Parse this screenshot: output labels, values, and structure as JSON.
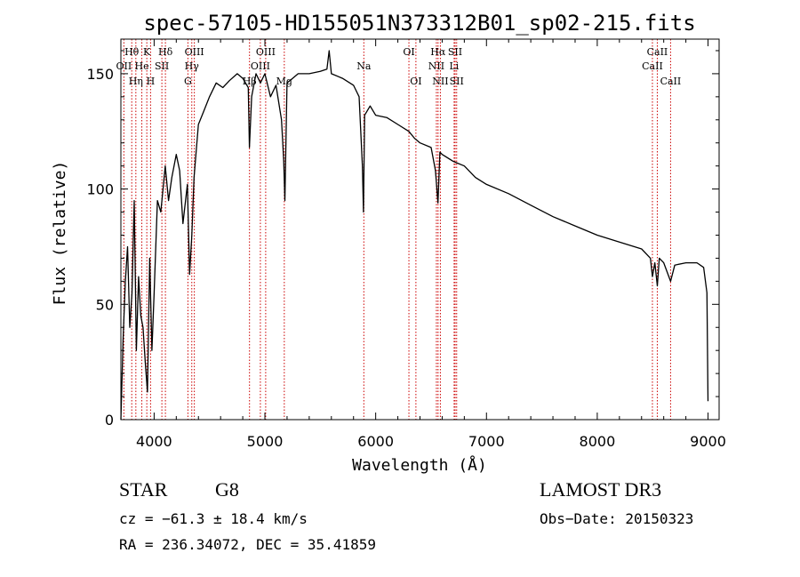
{
  "chart_data": {
    "type": "line",
    "title": "spec-57105-HD155051N373312B01_sp02-215.fits",
    "xlabel": "Wavelength (Å)",
    "ylabel": "Flux (relative)",
    "xlim": [
      3700,
      9100
    ],
    "ylim": [
      0,
      165
    ],
    "xticks": [
      4000,
      5000,
      6000,
      7000,
      8000,
      9000
    ],
    "yticks": [
      0,
      50,
      100,
      150
    ],
    "line_color": "#000000",
    "marker_color": "#cc0000",
    "series": [
      {
        "name": "spectrum",
        "x": [
          3700,
          3720,
          3740,
          3760,
          3780,
          3800,
          3820,
          3840,
          3860,
          3880,
          3900,
          3920,
          3940,
          3960,
          3980,
          4000,
          4030,
          4060,
          4100,
          4130,
          4160,
          4200,
          4230,
          4260,
          4300,
          4320,
          4340,
          4360,
          4400,
          4450,
          4500,
          4560,
          4620,
          4680,
          4750,
          4800,
          4850,
          4860,
          4880,
          4920,
          4960,
          5000,
          5050,
          5100,
          5150,
          5170,
          5180,
          5200,
          5250,
          5300,
          5400,
          5500,
          5560,
          5580,
          5600,
          5700,
          5800,
          5850,
          5880,
          5890,
          5900,
          5950,
          6000,
          6100,
          6200,
          6300,
          6350,
          6400,
          6500,
          6540,
          6562,
          6580,
          6600,
          6700,
          6800,
          6900,
          7000,
          7200,
          7400,
          7600,
          7800,
          8000,
          8200,
          8400,
          8480,
          8498,
          8520,
          8542,
          8560,
          8600,
          8662,
          8700,
          8800,
          8900,
          8960,
          8990,
          9000
        ],
        "y": [
          0,
          35,
          60,
          75,
          40,
          55,
          95,
          30,
          62,
          45,
          40,
          25,
          12,
          70,
          30,
          55,
          95,
          90,
          110,
          95,
          105,
          115,
          108,
          85,
          102,
          63,
          80,
          105,
          128,
          134,
          140,
          146,
          144,
          147,
          150,
          148,
          144,
          118,
          140,
          150,
          146,
          150,
          140,
          145,
          130,
          112,
          95,
          146,
          148,
          150,
          150,
          151,
          152,
          160,
          150,
          148,
          145,
          140,
          110,
          90,
          132,
          136,
          132,
          131,
          128,
          125,
          122,
          120,
          118,
          108,
          94,
          116,
          115,
          112,
          110,
          105,
          102,
          98,
          93,
          88,
          84,
          80,
          77,
          74,
          70,
          62,
          68,
          58,
          70,
          68,
          60,
          67,
          68,
          68,
          66,
          55,
          8
        ]
      }
    ],
    "line_markers": [
      {
        "name": "Hθ",
        "wavelength": 3798,
        "label_row": 1
      },
      {
        "name": "OII",
        "wavelength": 3727,
        "label_row": 2
      },
      {
        "name": "Hη",
        "wavelength": 3835,
        "label_row": 3
      },
      {
        "name": "K",
        "wavelength": 3934,
        "label_row": 1
      },
      {
        "name": "He",
        "wavelength": 3889,
        "label_row": 2
      },
      {
        "name": "H",
        "wavelength": 3968,
        "label_row": 3
      },
      {
        "name": "SII",
        "wavelength": 4070,
        "label_row": 2
      },
      {
        "name": "Hδ",
        "wavelength": 4102,
        "label_row": 1
      },
      {
        "name": "OIII",
        "wavelength": 4363,
        "label_row": 1
      },
      {
        "name": "Hγ",
        "wavelength": 4340,
        "label_row": 2
      },
      {
        "name": "G",
        "wavelength": 4305,
        "label_row": 3
      },
      {
        "name": "Hβ",
        "wavelength": 4861,
        "label_row": 3
      },
      {
        "name": "OIII",
        "wavelength": 5007,
        "label_row": 1
      },
      {
        "name": "OIII",
        "wavelength": 4959,
        "label_row": 2
      },
      {
        "name": "Mg",
        "wavelength": 5175,
        "label_row": 3
      },
      {
        "name": "Na",
        "wavelength": 5893,
        "label_row": 2
      },
      {
        "name": "OI",
        "wavelength": 6300,
        "label_row": 1
      },
      {
        "name": "OI",
        "wavelength": 6363,
        "label_row": 3
      },
      {
        "name": "Hα",
        "wavelength": 6563,
        "label_row": 1
      },
      {
        "name": "NII",
        "wavelength": 6548,
        "label_row": 2
      },
      {
        "name": "NII",
        "wavelength": 6584,
        "label_row": 3
      },
      {
        "name": "SII",
        "wavelength": 6717,
        "label_row": 1
      },
      {
        "name": "Li",
        "wavelength": 6708,
        "label_row": 2
      },
      {
        "name": "SII",
        "wavelength": 6731,
        "label_row": 3
      },
      {
        "name": "CaII",
        "wavelength": 8542,
        "label_row": 1
      },
      {
        "name": "CaII",
        "wavelength": 8498,
        "label_row": 2
      },
      {
        "name": "CaII",
        "wavelength": 8662,
        "label_row": 3
      }
    ]
  },
  "info": {
    "object_class": "STAR",
    "subclass": "G8",
    "survey": "LAMOST DR3",
    "cz": "cz = −61.3 ± 18.4 km/s",
    "obs_date": "Obs−Date: 20150323",
    "coords": "RA = 236.34072, DEC =  35.41859"
  }
}
